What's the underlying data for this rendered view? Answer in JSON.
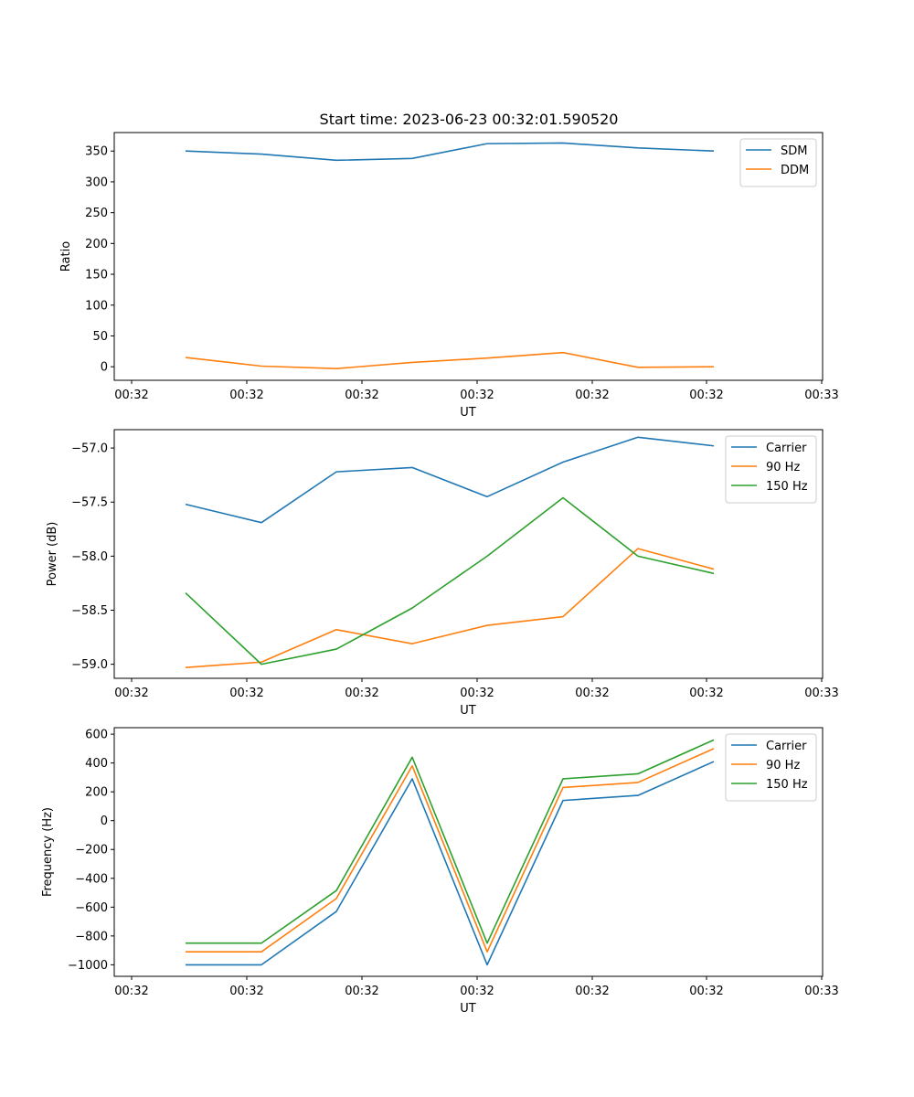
{
  "title": "Start time: 2023-06-23 00:32:01.590520",
  "chart_data": [
    {
      "type": "line",
      "xlabel": "UT",
      "ylabel": "Ratio",
      "x_tick_labels": [
        "00:32",
        "00:32",
        "00:32",
        "00:32",
        "00:32",
        "00:32",
        "00:33"
      ],
      "ylim": [
        -22,
        380
      ],
      "y_ticks": [
        0,
        50,
        100,
        150,
        200,
        250,
        300,
        350
      ],
      "y_tick_labels": [
        "0",
        "50",
        "100",
        "150",
        "200",
        "250",
        "300",
        "350"
      ],
      "grid": false,
      "legend_position": "upper right",
      "series": [
        {
          "name": "SDM",
          "color": "#1f77b4",
          "values": [
            350,
            345,
            335,
            338,
            362,
            363,
            355,
            350
          ]
        },
        {
          "name": "DDM",
          "color": "#ff7f0e",
          "values": [
            15,
            1,
            -3,
            7,
            14,
            23,
            -1,
            0
          ]
        }
      ]
    },
    {
      "type": "line",
      "xlabel": "UT",
      "ylabel": "Power (dB)",
      "x_tick_labels": [
        "00:32",
        "00:32",
        "00:32",
        "00:32",
        "00:32",
        "00:32",
        "00:33"
      ],
      "ylim": [
        -59.13,
        -56.83
      ],
      "y_ticks": [
        -59.0,
        -58.5,
        -58.0,
        -57.5,
        -57.0
      ],
      "y_tick_labels": [
        "−59.0",
        "−58.5",
        "−58.0",
        "−57.5",
        "−57.0"
      ],
      "grid": false,
      "legend_position": "upper right",
      "series": [
        {
          "name": "Carrier",
          "color": "#1f77b4",
          "values": [
            -57.52,
            -57.69,
            -57.22,
            -57.18,
            -57.45,
            -57.13,
            -56.9,
            -56.98
          ]
        },
        {
          "name": "90 Hz",
          "color": "#ff7f0e",
          "values": [
            -59.03,
            -58.98,
            -58.68,
            -58.81,
            -58.64,
            -58.56,
            -57.93,
            -58.12
          ]
        },
        {
          "name": "150 Hz",
          "color": "#2ca02c",
          "values": [
            -58.34,
            -59.0,
            -58.86,
            -58.48,
            -58.0,
            -57.46,
            -58.0,
            -58.16
          ]
        }
      ]
    },
    {
      "type": "line",
      "xlabel": "UT",
      "ylabel": "Frequency (Hz)",
      "x_tick_labels": [
        "00:32",
        "00:32",
        "00:32",
        "00:32",
        "00:32",
        "00:32",
        "00:33"
      ],
      "ylim": [
        -1080,
        645
      ],
      "y_ticks": [
        -1000,
        -800,
        -600,
        -400,
        -200,
        0,
        200,
        400,
        600
      ],
      "y_tick_labels": [
        "−1000",
        "−800",
        "−600",
        "−400",
        "−200",
        "0",
        "200",
        "400",
        "600"
      ],
      "grid": false,
      "legend_position": "upper right",
      "series": [
        {
          "name": "Carrier",
          "color": "#1f77b4",
          "values": [
            -1000,
            -1000,
            -630,
            290,
            -1000,
            140,
            175,
            410
          ]
        },
        {
          "name": "90 Hz",
          "color": "#ff7f0e",
          "values": [
            -910,
            -910,
            -540,
            380,
            -910,
            230,
            265,
            500
          ]
        },
        {
          "name": "150 Hz",
          "color": "#2ca02c",
          "values": [
            -850,
            -850,
            -485,
            440,
            -850,
            290,
            325,
            560
          ]
        }
      ]
    }
  ]
}
